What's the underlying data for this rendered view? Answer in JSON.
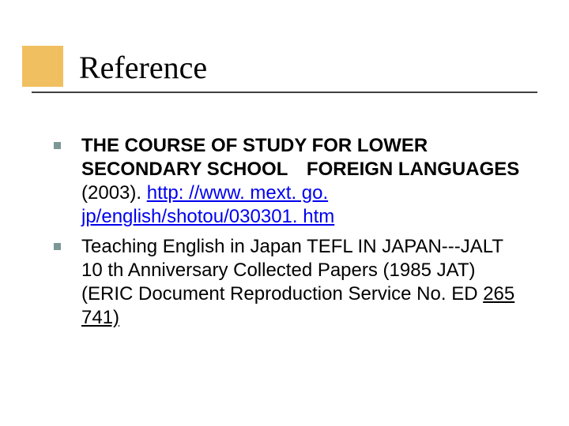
{
  "slide": {
    "title": "Reference",
    "accent_color": "#f0c060",
    "bullet_color": "#7d9796",
    "underline_color": "#404040",
    "background_color": "#ffffff",
    "title_fontsize": 40,
    "body_fontsize": 24,
    "link_color": "#0000ee"
  },
  "items": [
    {
      "bold_prefix": "THE COURSE OF STUDY FOR LOWER SECONDARY SCHOOL　FOREIGN LANGUAGES　",
      "plain_mid": "(2003). ",
      "link": "http: //www. mext. go. jp/english/shotou/030301. htm"
    },
    {
      "text_a": "Teaching English in Japan TEFL IN JAPAN---JALT 10 th Anniversary Collected Papers (1985 JAT)　　(ERIC Document Reproduction Service No. ED ",
      "underlined_a": "265",
      "text_b": " ",
      "underlined_b": "741)"
    }
  ]
}
